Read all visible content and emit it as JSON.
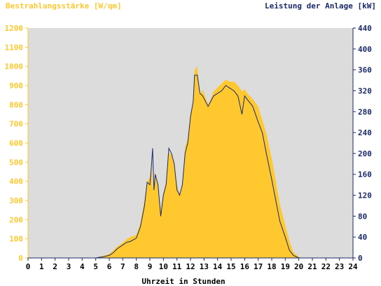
{
  "chart_data": {
    "type": "area",
    "left_title": "Bestrahlungsstärke [W/qm]",
    "right_title": "Leistung der Anlage [kW]",
    "xlabel": "Uhrzeit in Stunden",
    "x_ticks": [
      "0",
      "1",
      "2",
      "3",
      "4",
      "5",
      "6",
      "7",
      "8",
      "9",
      "10",
      "11",
      "12",
      "13",
      "14",
      "15",
      "16",
      "17",
      "18",
      "19",
      "20",
      "21",
      "22",
      "23",
      "24"
    ],
    "xlim": [
      0,
      24
    ],
    "y_left": {
      "lim": [
        0,
        1200
      ],
      "ticks": [
        "0",
        "100",
        "200",
        "300",
        "400",
        "500",
        "600",
        "700",
        "800",
        "900",
        "1000",
        "1100",
        "1200"
      ]
    },
    "y_right": {
      "lim": [
        0,
        440
      ],
      "ticks": [
        "0",
        "40",
        "80",
        "120",
        "160",
        "200",
        "240",
        "280",
        "320",
        "360",
        "400",
        "440"
      ]
    },
    "grid": false,
    "colors": {
      "irradiance": "#ffc82e",
      "power": "#1a2a6c",
      "plot_bg": "#dcdcdc",
      "left_axis": "#ffc82e",
      "right_axis": "#1a2a6c"
    },
    "series": [
      {
        "name": "Bestrahlungsstärke [W/qm]",
        "axis": "left",
        "x": [
          0,
          5.0,
          5.2,
          5.5,
          6.0,
          6.3,
          6.6,
          7.0,
          7.3,
          7.6,
          8.0,
          8.3,
          8.6,
          8.8,
          9.0,
          9.1,
          9.2,
          9.3,
          9.4,
          9.6,
          9.8,
          10.0,
          10.2,
          10.4,
          10.6,
          10.8,
          11.0,
          11.2,
          11.4,
          11.6,
          11.8,
          12.0,
          12.2,
          12.3,
          12.5,
          12.7,
          12.9,
          13.1,
          13.3,
          13.5,
          13.7,
          14.0,
          14.3,
          14.6,
          14.9,
          15.2,
          15.5,
          15.8,
          16.0,
          16.3,
          16.6,
          17.0,
          17.3,
          17.6,
          18.0,
          18.3,
          18.6,
          19.0,
          19.3,
          19.6,
          20.0,
          20.2,
          20.4,
          24
        ],
        "values": [
          0,
          0,
          5,
          10,
          20,
          40,
          60,
          80,
          100,
          110,
          120,
          180,
          300,
          400,
          420,
          500,
          380,
          360,
          450,
          380,
          250,
          340,
          400,
          550,
          540,
          500,
          380,
          330,
          380,
          580,
          620,
          760,
          800,
          980,
          1000,
          850,
          880,
          840,
          800,
          830,
          870,
          890,
          910,
          930,
          920,
          920,
          900,
          870,
          880,
          850,
          830,
          790,
          720,
          650,
          520,
          400,
          280,
          170,
          90,
          30,
          5,
          0,
          0,
          0
        ]
      },
      {
        "name": "Leistung der Anlage [kW]",
        "axis": "right",
        "x": [
          0,
          5.0,
          5.2,
          5.5,
          6.0,
          6.3,
          6.6,
          7.0,
          7.3,
          7.6,
          8.0,
          8.3,
          8.6,
          8.8,
          9.0,
          9.1,
          9.2,
          9.3,
          9.4,
          9.6,
          9.8,
          10.0,
          10.2,
          10.4,
          10.6,
          10.8,
          11.0,
          11.2,
          11.4,
          11.6,
          11.8,
          12.0,
          12.2,
          12.3,
          12.5,
          12.7,
          12.9,
          13.1,
          13.3,
          13.5,
          13.7,
          14.0,
          14.3,
          14.6,
          14.9,
          15.2,
          15.5,
          15.8,
          16.0,
          16.3,
          16.6,
          17.0,
          17.3,
          17.6,
          18.0,
          18.3,
          18.6,
          19.0,
          19.3,
          19.6,
          20.0,
          20.2,
          20.4,
          24
        ],
        "values": [
          0,
          0,
          1,
          2,
          5,
          10,
          18,
          25,
          30,
          32,
          38,
          60,
          100,
          145,
          140,
          170,
          210,
          130,
          160,
          140,
          80,
          120,
          140,
          210,
          200,
          180,
          130,
          120,
          140,
          200,
          220,
          270,
          300,
          350,
          350,
          315,
          310,
          300,
          290,
          300,
          310,
          315,
          320,
          330,
          325,
          320,
          310,
          275,
          310,
          300,
          290,
          260,
          240,
          200,
          150,
          110,
          70,
          40,
          15,
          5,
          0,
          0,
          0,
          0
        ]
      }
    ]
  }
}
